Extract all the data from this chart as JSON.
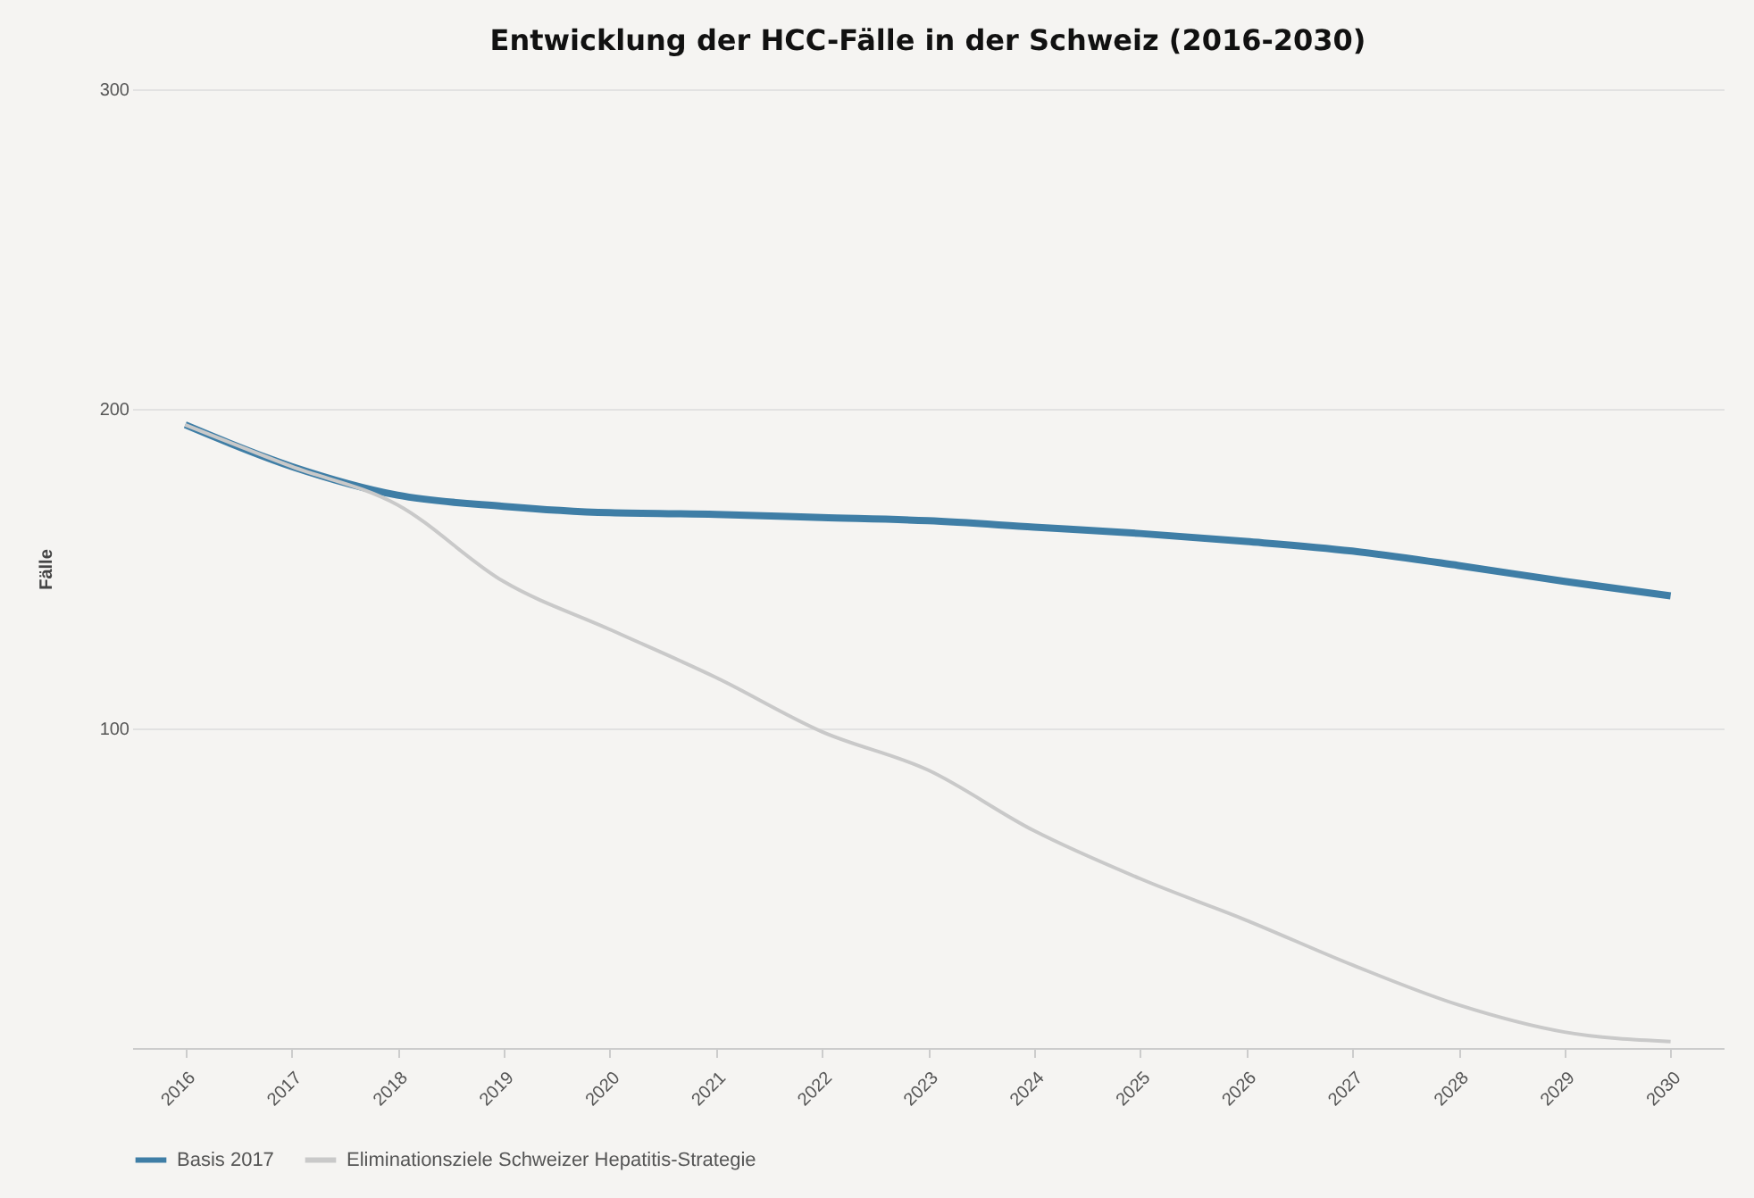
{
  "chart_data": {
    "type": "line",
    "title": "Entwicklung der HCC-Fälle in der Schweiz (2016-2030)",
    "ylabel": "Fälle",
    "categories": [
      "2016",
      "2017",
      "2018",
      "2019",
      "2020",
      "2021",
      "2022",
      "2023",
      "2024",
      "2025",
      "2026",
      "2027",
      "2028",
      "2029",
      "2030"
    ],
    "series": [
      {
        "name": "Basis 2017",
        "color": "#3f7ea6",
        "values": [
          195,
          182,
          173,
          169.5,
          167.5,
          167,
          166,
          165,
          163,
          161,
          158.5,
          155.5,
          151,
          146,
          141.5
        ]
      },
      {
        "name": "Eliminationsziele Schweizer Hepatitis-Strategie",
        "color": "#c9c9c9",
        "values": [
          195,
          182,
          170,
          146,
          131,
          116,
          99,
          87,
          68,
          53,
          40,
          26,
          13.5,
          5,
          2
        ]
      }
    ],
    "ylim": [
      0,
      300
    ],
    "yticks": [
      100,
      200,
      300
    ],
    "grid": "y",
    "legend": "bottom",
    "marker": "none",
    "line_style": "solid"
  }
}
